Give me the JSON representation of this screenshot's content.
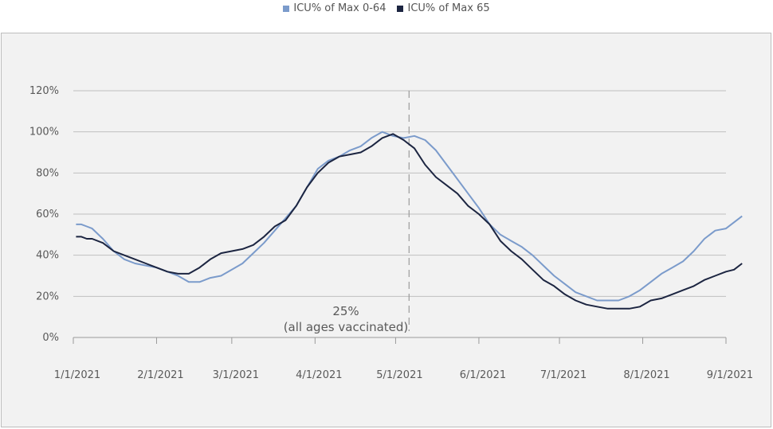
{
  "chart_data": {
    "type": "line",
    "title": "",
    "xlabel": "",
    "ylabel": "",
    "ylim": [
      0,
      120
    ],
    "y_ticks": [
      0,
      20,
      40,
      60,
      80,
      100,
      120
    ],
    "y_tick_labels": [
      "0%",
      "20%",
      "40%",
      "60%",
      "80%",
      "100%",
      "120%"
    ],
    "x_tick_labels": [
      "1/1/2021",
      "2/1/2021",
      "3/1/2021",
      "4/1/2021",
      "5/1/2021",
      "6/1/2021",
      "7/1/2021",
      "8/1/2021",
      "9/1/2021"
    ],
    "x_tick_dates": [
      "2021-01-01",
      "2021-02-01",
      "2021-03-01",
      "2021-04-01",
      "2021-05-01",
      "2021-06-01",
      "2021-07-01",
      "2021-08-01",
      "2021-09-01"
    ],
    "x_range": [
      "2021-01-01",
      "2021-09-08"
    ],
    "grid": true,
    "legend_position": "top-center",
    "series": [
      {
        "name": "ICU% of Max 0-64",
        "color": "#7b9bcb",
        "x": [
          "2021-01-02",
          "2021-01-04",
          "2021-01-06",
          "2021-01-08",
          "2021-01-12",
          "2021-01-16",
          "2021-01-20",
          "2021-01-24",
          "2021-01-28",
          "2021-02-01",
          "2021-02-05",
          "2021-02-09",
          "2021-02-13",
          "2021-02-17",
          "2021-02-21",
          "2021-02-25",
          "2021-03-01",
          "2021-03-05",
          "2021-03-09",
          "2021-03-13",
          "2021-03-17",
          "2021-03-21",
          "2021-03-25",
          "2021-03-29",
          "2021-04-02",
          "2021-04-06",
          "2021-04-10",
          "2021-04-14",
          "2021-04-18",
          "2021-04-22",
          "2021-04-26",
          "2021-04-30",
          "2021-05-04",
          "2021-05-08",
          "2021-05-12",
          "2021-05-16",
          "2021-05-20",
          "2021-05-24",
          "2021-05-28",
          "2021-06-01",
          "2021-06-05",
          "2021-06-09",
          "2021-06-13",
          "2021-06-17",
          "2021-06-21",
          "2021-06-25",
          "2021-06-29",
          "2021-07-03",
          "2021-07-07",
          "2021-07-11",
          "2021-07-15",
          "2021-07-19",
          "2021-07-23",
          "2021-07-27",
          "2021-07-31",
          "2021-08-04",
          "2021-08-08",
          "2021-08-12",
          "2021-08-16",
          "2021-08-20",
          "2021-08-24",
          "2021-08-28",
          "2021-09-01",
          "2021-09-04",
          "2021-09-07"
        ],
        "values": [
          55,
          55,
          54,
          53,
          48,
          42,
          38,
          36,
          35,
          34,
          32,
          30,
          27,
          27,
          29,
          30,
          33,
          36,
          41,
          46,
          52,
          58,
          64,
          73,
          82,
          86,
          88,
          91,
          93,
          97,
          100,
          98,
          97,
          98,
          96,
          91,
          84,
          77,
          70,
          63,
          55,
          50,
          47,
          44,
          40,
          35,
          30,
          26,
          22,
          20,
          18,
          18,
          18,
          20,
          23,
          27,
          31,
          34,
          37,
          42,
          48,
          52,
          53,
          56,
          59
        ]
      },
      {
        "name": "ICU% of Max 65",
        "color": "#1c2541",
        "x": [
          "2021-01-02",
          "2021-01-04",
          "2021-01-06",
          "2021-01-08",
          "2021-01-12",
          "2021-01-16",
          "2021-01-20",
          "2021-01-24",
          "2021-01-28",
          "2021-02-01",
          "2021-02-05",
          "2021-02-09",
          "2021-02-13",
          "2021-02-17",
          "2021-02-21",
          "2021-02-25",
          "2021-03-01",
          "2021-03-05",
          "2021-03-09",
          "2021-03-13",
          "2021-03-17",
          "2021-03-21",
          "2021-03-25",
          "2021-03-29",
          "2021-04-02",
          "2021-04-06",
          "2021-04-10",
          "2021-04-14",
          "2021-04-18",
          "2021-04-22",
          "2021-04-26",
          "2021-04-30",
          "2021-05-04",
          "2021-05-08",
          "2021-05-12",
          "2021-05-16",
          "2021-05-20",
          "2021-05-24",
          "2021-05-28",
          "2021-06-01",
          "2021-06-05",
          "2021-06-09",
          "2021-06-13",
          "2021-06-17",
          "2021-06-21",
          "2021-06-25",
          "2021-06-29",
          "2021-07-03",
          "2021-07-07",
          "2021-07-11",
          "2021-07-15",
          "2021-07-19",
          "2021-07-23",
          "2021-07-27",
          "2021-07-31",
          "2021-08-04",
          "2021-08-08",
          "2021-08-12",
          "2021-08-16",
          "2021-08-20",
          "2021-08-24",
          "2021-08-28",
          "2021-09-01",
          "2021-09-04",
          "2021-09-07"
        ],
        "values": [
          49,
          49,
          48,
          48,
          46,
          42,
          40,
          38,
          36,
          34,
          32,
          31,
          31,
          34,
          38,
          41,
          42,
          43,
          45,
          49,
          54,
          57,
          64,
          73,
          80,
          85,
          88,
          89,
          90,
          93,
          97,
          99,
          96,
          92,
          84,
          78,
          74,
          70,
          64,
          60,
          55,
          47,
          42,
          38,
          33,
          28,
          25,
          21,
          18,
          16,
          15,
          14,
          14,
          14,
          15,
          18,
          19,
          21,
          23,
          25,
          28,
          30,
          32,
          33,
          36
        ]
      }
    ],
    "annotations": [
      {
        "date": "2021-05-06",
        "line": "dashed",
        "label_line1": "25%",
        "label_line2": "(all ages vaccinated)"
      }
    ]
  }
}
